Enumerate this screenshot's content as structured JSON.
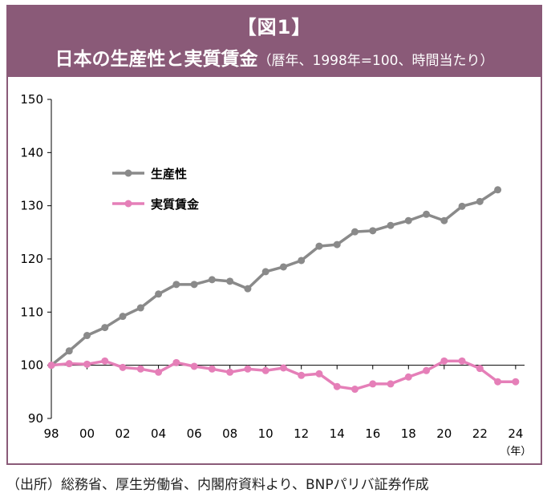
{
  "header": {
    "figure_label": "【図1】",
    "title": "日本の生産性と実質賃金",
    "subtitle": "（暦年、1998年=100、時間当たり）"
  },
  "source": "（出所）総務省、厚生労働省、内閣府資料より、BNPパリバ証券作成",
  "colors": {
    "header_bg": "#8a5a78",
    "productivity": "#8a8a8a",
    "real_wage": "#e57fb8"
  },
  "chart_data": {
    "type": "line",
    "title": "日本の生産性と実質賃金",
    "subtitle": "（暦年、1998年=100、時間当たり）",
    "xlabel": "（年）",
    "ylabel": "",
    "x": [
      1998,
      1999,
      2000,
      2001,
      2002,
      2003,
      2004,
      2005,
      2006,
      2007,
      2008,
      2009,
      2010,
      2011,
      2012,
      2013,
      2014,
      2015,
      2016,
      2017,
      2018,
      2019,
      2020,
      2021,
      2022,
      2023,
      2024
    ],
    "x_ticks": [
      1998,
      2000,
      2002,
      2004,
      2006,
      2008,
      2010,
      2012,
      2014,
      2016,
      2018,
      2020,
      2022,
      2024
    ],
    "x_tick_labels": [
      "98",
      "00",
      "02",
      "04",
      "06",
      "08",
      "10",
      "12",
      "14",
      "16",
      "18",
      "20",
      "22",
      "24"
    ],
    "xlim": [
      1998,
      2024.5
    ],
    "ylim": [
      90,
      150
    ],
    "y_ticks": [
      90,
      100,
      110,
      120,
      130,
      140,
      150
    ],
    "baseline": 100,
    "grid": false,
    "legend_position": "upper-left",
    "series": [
      {
        "name": "生産性",
        "color": "#8a8a8a",
        "values": [
          100,
          102.7,
          105.6,
          107.1,
          109.2,
          110.8,
          113.4,
          115.2,
          115.2,
          116.1,
          115.8,
          114.4,
          117.6,
          118.5,
          119.7,
          122.4,
          122.7,
          125.1,
          125.3,
          126.3,
          127.2,
          128.4,
          127.2,
          129.9,
          130.8,
          133.0,
          null
        ]
      },
      {
        "name": "実質賃金",
        "color": "#e57fb8",
        "values": [
          100,
          100.3,
          100.2,
          100.8,
          99.6,
          99.3,
          98.7,
          100.5,
          99.8,
          99.3,
          98.7,
          99.3,
          99.0,
          99.5,
          98.1,
          98.4,
          96.0,
          95.5,
          96.5,
          96.5,
          97.8,
          99.0,
          100.8,
          100.8,
          99.4,
          96.9,
          96.9
        ]
      }
    ]
  }
}
